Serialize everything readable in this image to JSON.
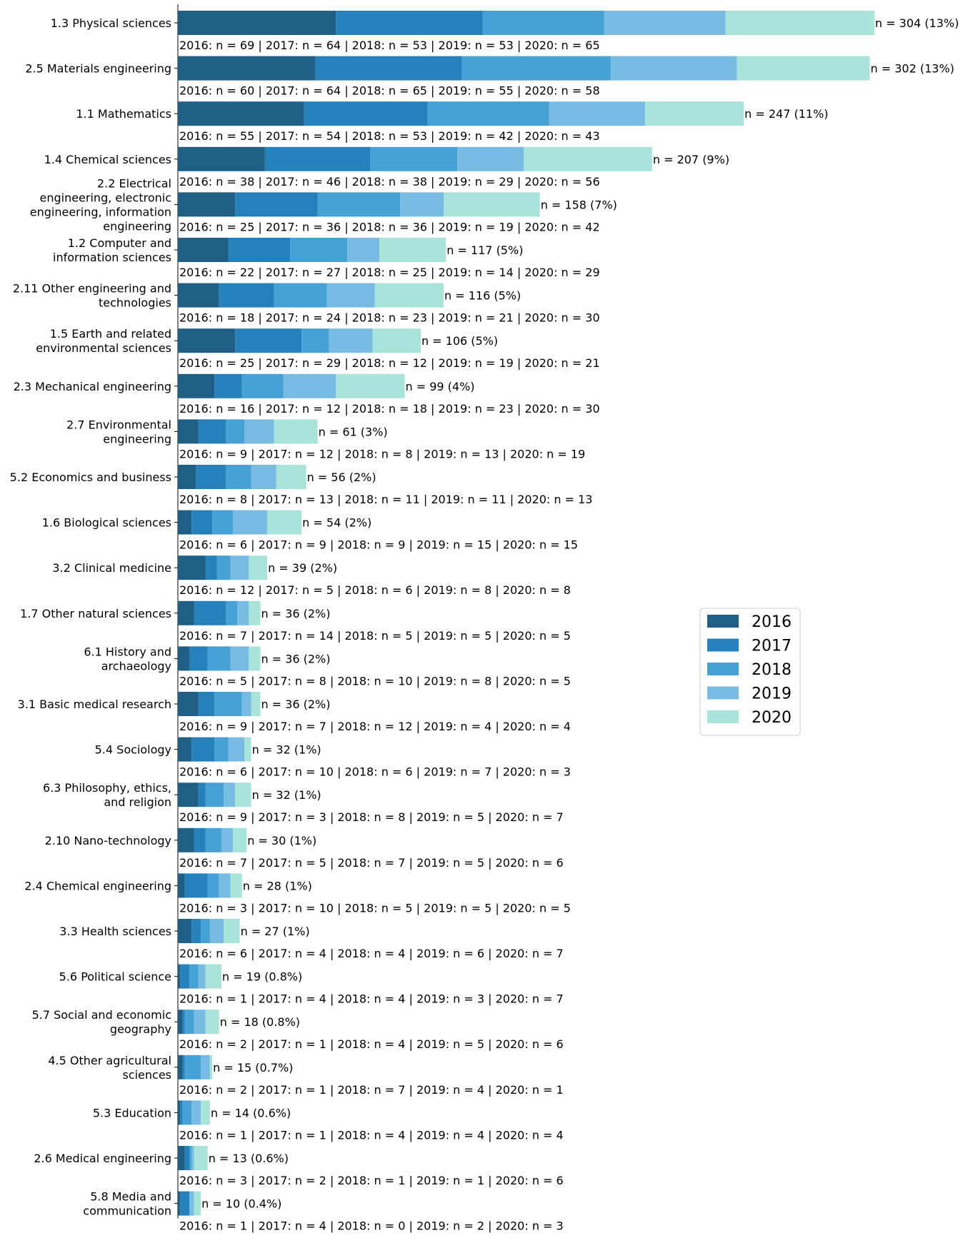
{
  "chart_data": {
    "type": "bar",
    "orientation": "horizontal",
    "stacked": true,
    "title": "",
    "xlabel": "",
    "ylabel": "",
    "legend": {
      "placement": "center-right",
      "entries": [
        "2016",
        "2017",
        "2018",
        "2019",
        "2020"
      ]
    },
    "colors": [
      "#1f5f85",
      "#2581bb",
      "#46a1d6",
      "#78bce3",
      "#a9e4da"
    ],
    "categories": [
      {
        "label": "1.3 Physical sciences",
        "values": [
          69,
          64,
          53,
          53,
          65
        ],
        "total": 304,
        "total_label": "n = 304 (13%)",
        "detail": "2016: n = 69 | 2017: n = 64 | 2018: n = 53 | 2019: n = 53 | 2020: n = 65"
      },
      {
        "label": "2.5 Materials engineering",
        "values": [
          60,
          64,
          65,
          55,
          58
        ],
        "total": 302,
        "total_label": "n = 302 (13%)",
        "detail": "2016: n = 60 | 2017: n = 64 | 2018: n = 65 | 2019: n = 55 | 2020: n = 58"
      },
      {
        "label": "1.1 Mathematics",
        "values": [
          55,
          54,
          53,
          42,
          43
        ],
        "total": 247,
        "total_label": "n = 247 (11%)",
        "detail": "2016: n = 55 | 2017: n = 54 | 2018: n = 53 | 2019: n = 42 | 2020: n = 43"
      },
      {
        "label": "1.4 Chemical sciences",
        "values": [
          38,
          46,
          38,
          29,
          56
        ],
        "total": 207,
        "total_label": "n = 207 (9%)",
        "detail": "2016: n = 38 | 2017: n = 46 | 2018: n = 38 | 2019: n = 29 | 2020: n = 56"
      },
      {
        "label": "2.2 Electrical engineering, electronic engineering, information engineering",
        "values": [
          25,
          36,
          36,
          19,
          42
        ],
        "total": 158,
        "total_label": "n = 158 (7%)",
        "detail": "2016: n = 25 | 2017: n = 36 | 2018: n = 36 | 2019: n = 19 | 2020: n = 42"
      },
      {
        "label": "1.2 Computer and information sciences",
        "values": [
          22,
          27,
          25,
          14,
          29
        ],
        "total": 117,
        "total_label": "n = 117 (5%)",
        "detail": "2016: n = 22 | 2017: n = 27 | 2018: n = 25 | 2019: n = 14 | 2020: n = 29"
      },
      {
        "label": "2.11 Other engineering and technologies",
        "values": [
          18,
          24,
          23,
          21,
          30
        ],
        "total": 116,
        "total_label": "n = 116 (5%)",
        "detail": "2016: n = 18 | 2017: n = 24 | 2018: n = 23 | 2019: n = 21 | 2020: n = 30"
      },
      {
        "label": "1.5 Earth and related environmental sciences",
        "values": [
          25,
          29,
          12,
          19,
          21
        ],
        "total": 106,
        "total_label": "n = 106 (5%)",
        "detail": "2016: n = 25 | 2017: n = 29 | 2018: n = 12 | 2019: n = 19 | 2020: n = 21"
      },
      {
        "label": "2.3 Mechanical engineering",
        "values": [
          16,
          12,
          18,
          23,
          30
        ],
        "total": 99,
        "total_label": "n = 99 (4%)",
        "detail": "2016: n = 16 | 2017: n = 12 | 2018: n = 18 | 2019: n = 23 | 2020: n = 30"
      },
      {
        "label": "2.7 Environmental engineering",
        "values": [
          9,
          12,
          8,
          13,
          19
        ],
        "total": 61,
        "total_label": "n = 61 (3%)",
        "detail": "2016: n = 9 | 2017: n = 12 | 2018: n = 8 | 2019: n = 13 | 2020: n = 19"
      },
      {
        "label": "5.2 Economics and business",
        "values": [
          8,
          13,
          11,
          11,
          13
        ],
        "total": 56,
        "total_label": "n = 56 (2%)",
        "detail": "2016: n = 8 | 2017: n = 13 | 2018: n = 11 | 2019: n = 11 | 2020: n = 13"
      },
      {
        "label": "1.6 Biological sciences",
        "values": [
          6,
          9,
          9,
          15,
          15
        ],
        "total": 54,
        "total_label": "n = 54 (2%)",
        "detail": "2016: n = 6 | 2017: n = 9 | 2018: n = 9 | 2019: n = 15 | 2020: n = 15"
      },
      {
        "label": "3.2 Clinical medicine",
        "values": [
          12,
          5,
          6,
          8,
          8
        ],
        "total": 39,
        "total_label": "n = 39 (2%)",
        "detail": "2016: n = 12 | 2017: n = 5 | 2018: n = 6 | 2019: n = 8 | 2020: n = 8"
      },
      {
        "label": "1.7 Other natural sciences",
        "values": [
          7,
          14,
          5,
          5,
          5
        ],
        "total": 36,
        "total_label": "n = 36 (2%)",
        "detail": "2016: n = 7 | 2017: n = 14 | 2018: n = 5 | 2019: n = 5 | 2020: n = 5"
      },
      {
        "label": "6.1 History and archaeology",
        "values": [
          5,
          8,
          10,
          8,
          5
        ],
        "total": 36,
        "total_label": "n = 36 (2%)",
        "detail": "2016: n = 5 | 2017: n = 8 | 2018: n = 10 | 2019: n = 8 | 2020: n = 5"
      },
      {
        "label": "3.1 Basic medical research",
        "values": [
          9,
          7,
          12,
          4,
          4
        ],
        "total": 36,
        "total_label": "n = 36 (2%)",
        "detail": "2016: n = 9 | 2017: n = 7 | 2018: n = 12 | 2019: n = 4 | 2020: n = 4"
      },
      {
        "label": "5.4 Sociology",
        "values": [
          6,
          10,
          6,
          7,
          3
        ],
        "total": 32,
        "total_label": "n = 32 (1%)",
        "detail": "2016: n = 6 | 2017: n = 10 | 2018: n = 6 | 2019: n = 7 | 2020: n = 3"
      },
      {
        "label": "6.3 Philosophy, ethics, and religion",
        "values": [
          9,
          3,
          8,
          5,
          7
        ],
        "total": 32,
        "total_label": "n = 32 (1%)",
        "detail": "2016: n = 9 | 2017: n = 3 | 2018: n = 8 | 2019: n = 5 | 2020: n = 7"
      },
      {
        "label": "2.10 Nano-technology",
        "values": [
          7,
          5,
          7,
          5,
          6
        ],
        "total": 30,
        "total_label": "n = 30 (1%)",
        "detail": "2016: n = 7 | 2017: n = 5 | 2018: n = 7 | 2019: n = 5 | 2020: n = 6"
      },
      {
        "label": "2.4 Chemical engineering",
        "values": [
          3,
          10,
          5,
          5,
          5
        ],
        "total": 28,
        "total_label": "n = 28 (1%)",
        "detail": "2016: n = 3 | 2017: n = 10 | 2018: n = 5 | 2019: n = 5 | 2020: n = 5"
      },
      {
        "label": "3.3 Health sciences",
        "values": [
          6,
          4,
          4,
          6,
          7
        ],
        "total": 27,
        "total_label": "n = 27 (1%)",
        "detail": "2016: n = 6 | 2017: n = 4 | 2018: n = 4 | 2019: n = 6 | 2020: n = 7"
      },
      {
        "label": "5.6 Political science",
        "values": [
          1,
          4,
          4,
          3,
          7
        ],
        "total": 19,
        "total_label": "n = 19 (0.8%)",
        "detail": "2016: n = 1 | 2017: n = 4 | 2018: n = 4 | 2019: n = 3 | 2020: n = 7"
      },
      {
        "label": "5.7 Social and economic geography",
        "values": [
          2,
          1,
          4,
          5,
          6
        ],
        "total": 18,
        "total_label": "n = 18 (0.8%)",
        "detail": "2016: n = 2 | 2017: n = 1 | 2018: n = 4 | 2019: n = 5 | 2020: n = 6"
      },
      {
        "label": "4.5 Other agricultural sciences",
        "values": [
          2,
          1,
          7,
          4,
          1
        ],
        "total": 15,
        "total_label": "n = 15 (0.7%)",
        "detail": "2016: n = 2 | 2017: n = 1 | 2018: n = 7 | 2019: n = 4 | 2020: n = 1"
      },
      {
        "label": "5.3 Education",
        "values": [
          1,
          1,
          4,
          4,
          4
        ],
        "total": 14,
        "total_label": "n = 14 (0.6%)",
        "detail": "2016: n = 1 | 2017: n = 1 | 2018: n = 4 | 2019: n = 4 | 2020: n = 4"
      },
      {
        "label": "2.6 Medical engineering",
        "values": [
          3,
          2,
          1,
          1,
          6
        ],
        "total": 13,
        "total_label": "n = 13 (0.6%)",
        "detail": "2016: n = 3 | 2017: n = 2 | 2018: n = 1 | 2019: n = 1 | 2020: n = 6"
      },
      {
        "label": "5.8 Media and communication",
        "values": [
          1,
          4,
          0,
          2,
          3
        ],
        "total": 10,
        "total_label": "n = 10 (0.4%)",
        "detail": "2016: n = 1 | 2017: n = 4 | 2018: n = 0 | 2019: n = 2 | 2020: n = 3"
      }
    ]
  }
}
